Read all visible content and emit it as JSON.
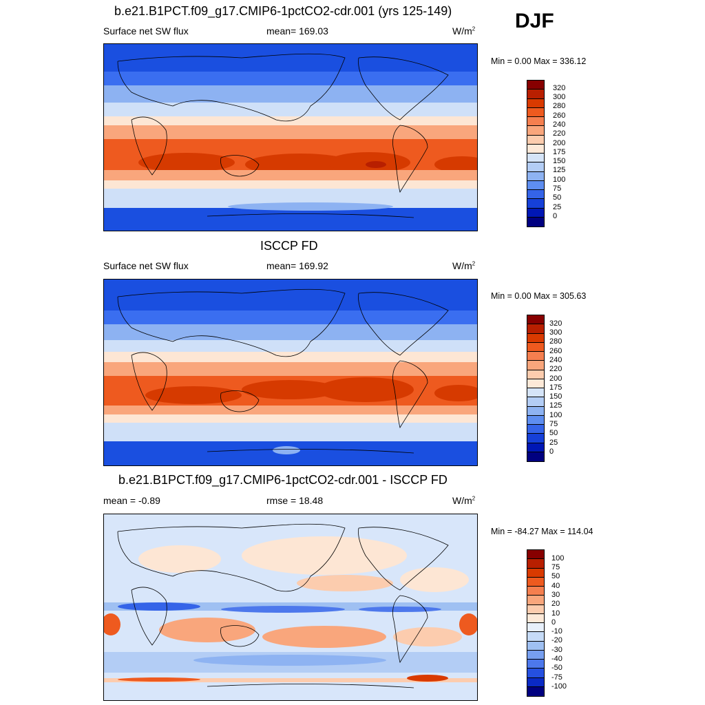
{
  "season": "DJF",
  "panel1": {
    "title": "b.e21.B1PCT.f09_g17.CMIP6-1pctCO2-cdr.001 (yrs 125-149)",
    "left": "Surface net SW flux",
    "center": "mean= 169.03",
    "units": "W/m",
    "units_sup": "2",
    "minmax": "Min =   0.00 Max = 336.12",
    "levels": [
      "320",
      "300",
      "280",
      "260",
      "240",
      "220",
      "200",
      "175",
      "150",
      "125",
      "100",
      "75",
      "50",
      "25",
      "0"
    ]
  },
  "panel2": {
    "title": "ISCCP FD",
    "left": "Surface net SW flux",
    "center": "mean= 169.92",
    "units": "W/m",
    "units_sup": "2",
    "minmax": "Min =   0.00 Max = 305.63",
    "levels": [
      "320",
      "300",
      "280",
      "260",
      "240",
      "220",
      "200",
      "175",
      "150",
      "125",
      "100",
      "75",
      "50",
      "25",
      "0"
    ]
  },
  "panel3": {
    "title": "b.e21.B1PCT.f09_g17.CMIP6-1pctCO2-cdr.001 - ISCCP FD",
    "left": "mean =  -0.89",
    "center": "rmse =  18.48",
    "units": "W/m",
    "units_sup": "2",
    "minmax": "Min = -84.27 Max = 114.04",
    "levels": [
      "100",
      "75",
      "50",
      "40",
      "30",
      "20",
      "10",
      "0",
      "-10",
      "-20",
      "-30",
      "-40",
      "-50",
      "-75",
      "-100"
    ]
  },
  "colors": {
    "abs_scale": [
      "#870000",
      "#b81f00",
      "#d93a00",
      "#ee5a1f",
      "#f57f4f",
      "#f9a67c",
      "#fcccae",
      "#fde9d8",
      "#d5e4f8",
      "#b3cdf5",
      "#8eb3f2",
      "#5e8ef0",
      "#3564e8",
      "#1640d8",
      "#0017b5",
      "#000080"
    ],
    "diff_scale": [
      "#870000",
      "#b81f00",
      "#d93a00",
      "#ee5a1f",
      "#f57f4f",
      "#f9a67c",
      "#fcccae",
      "#fde9d8",
      "#e8f0fb",
      "#c6dbf7",
      "#9fc0f2",
      "#779ff0",
      "#4d78ec",
      "#2550e0",
      "#0a2ac5",
      "#000080"
    ]
  }
}
